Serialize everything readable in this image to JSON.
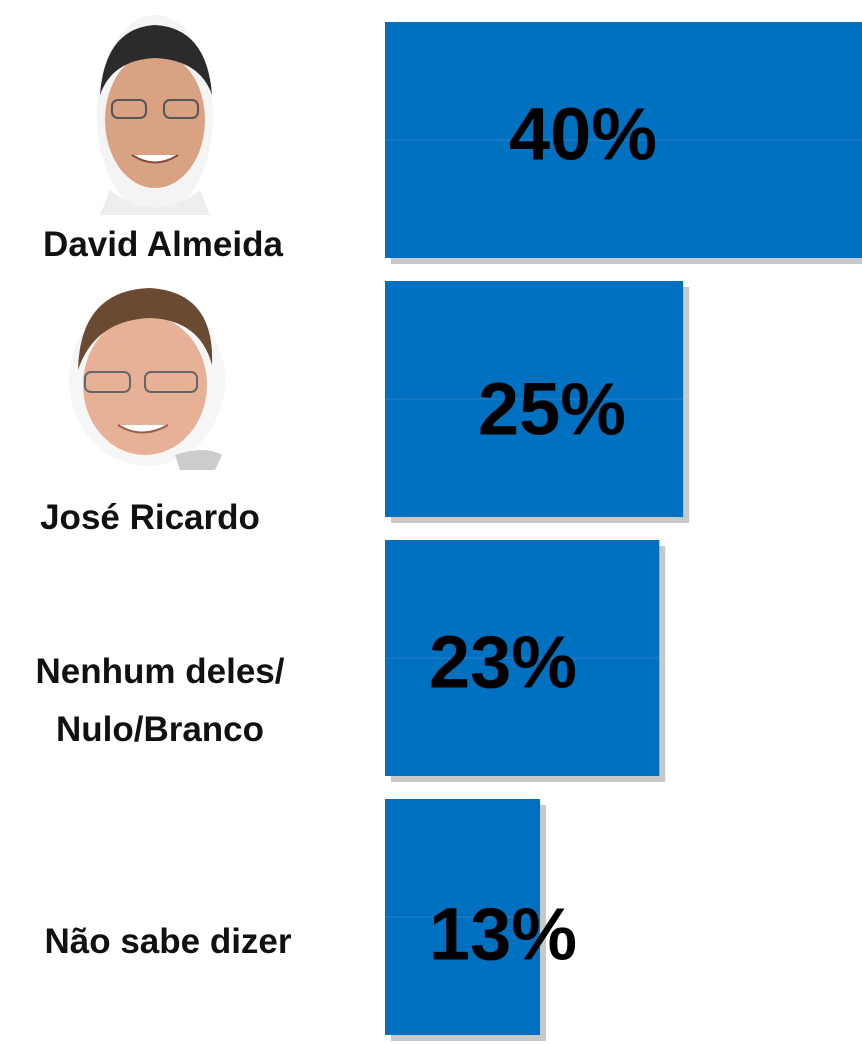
{
  "chart_data": {
    "type": "barh",
    "categories": [
      "David Almeida",
      "José Ricardo",
      "Nenhum deles/\nNulo/Branco",
      "Não sabe dizer"
    ],
    "values": [
      40,
      25,
      23,
      13
    ],
    "value_labels": [
      "40%",
      "25%",
      "23%",
      "13%"
    ],
    "color": "#0070c0"
  }
}
